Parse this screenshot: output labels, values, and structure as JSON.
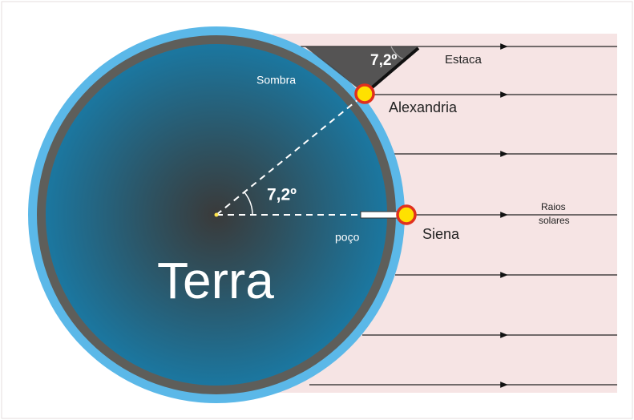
{
  "earth": "Terra",
  "shadow": "Sombra",
  "stake": "Estaca",
  "stake_angle": "7,2º",
  "center_angle": "7,2º",
  "alexandria": "Alexandria",
  "siena": "Siena",
  "well": "poço",
  "rays": [
    "Raios",
    "solares"
  ]
}
